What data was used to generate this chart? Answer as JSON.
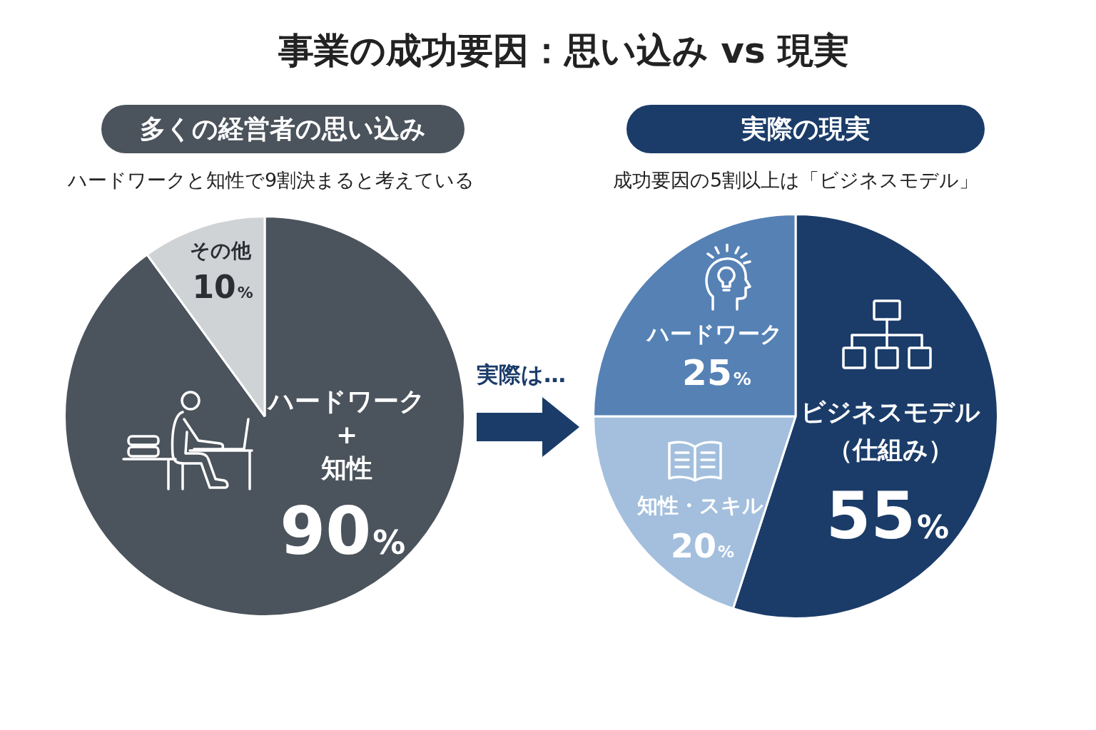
{
  "chart_data": [
    {
      "type": "other",
      "title": "事業の成功要因：思い込み vs 現実",
      "annotations": [
        "実際は…"
      ]
    },
    {
      "type": "pie",
      "title": "多くの経営者の思い込み",
      "subtitle": "ハードワークと知性で9割決まると考えている",
      "categories": [
        "ハードワーク\n+\n知性",
        "その他"
      ],
      "values": [
        90,
        10
      ],
      "colors": [
        "#4b535c",
        "#d0d3d6"
      ],
      "value_labels": [
        "90%",
        "10%"
      ]
    },
    {
      "type": "pie",
      "title": "実際の現実",
      "subtitle": "成功要因の5割以上は「ビジネスモデル」",
      "categories": [
        "ビジネスモデル（仕組み）",
        "知性・スキル",
        "ハードワーク"
      ],
      "values": [
        55,
        20,
        25
      ],
      "colors": [
        "#1b3c69",
        "#a3bfdd",
        "#5581b5"
      ],
      "value_labels": [
        "55%",
        "20%",
        "25%"
      ]
    }
  ]
}
